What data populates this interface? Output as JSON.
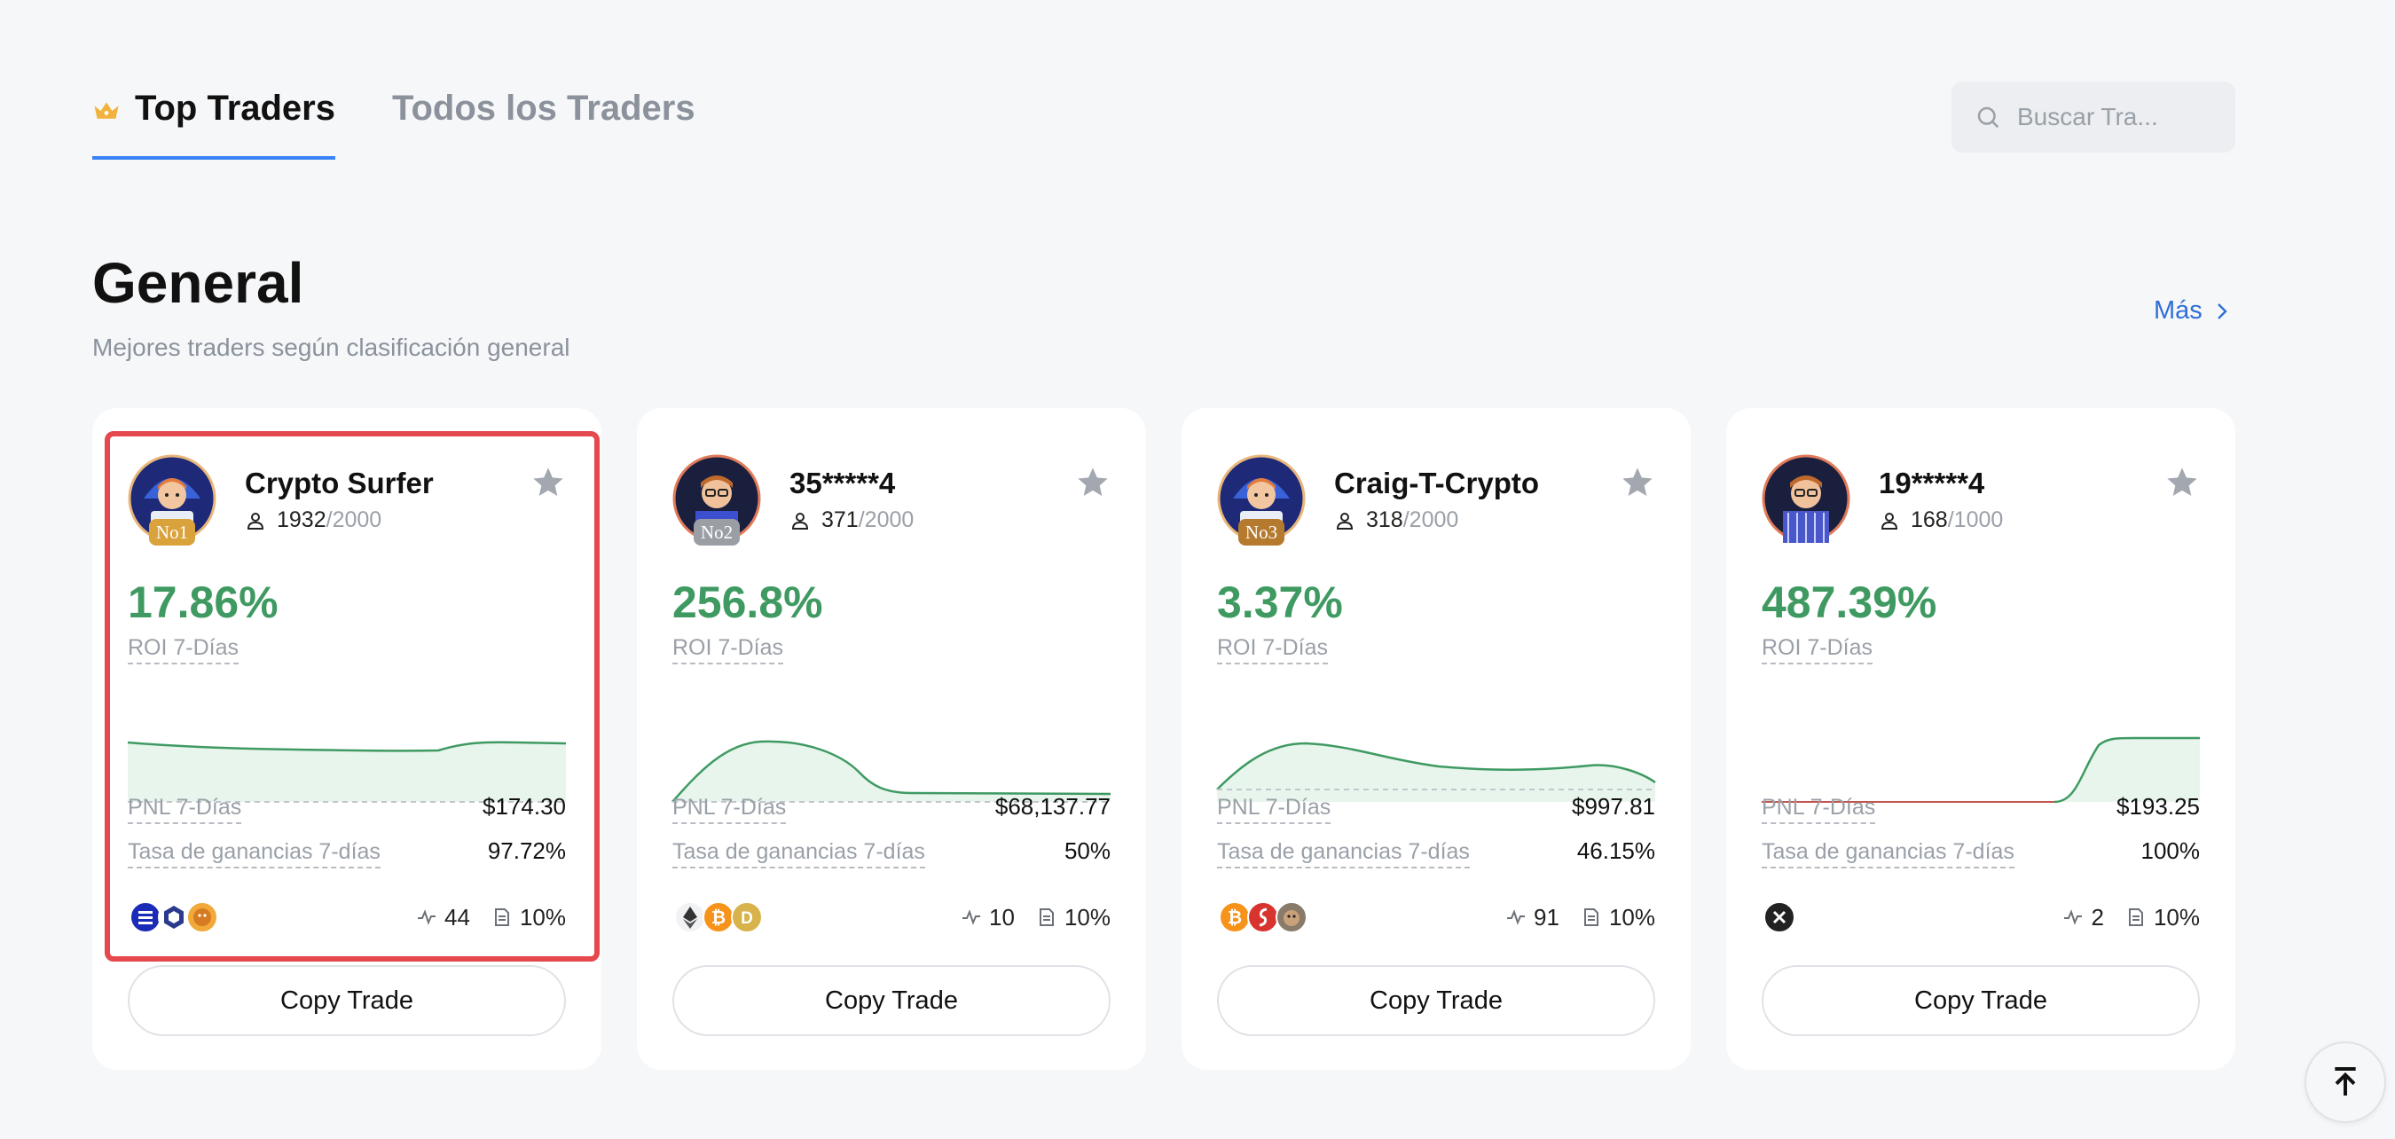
{
  "tabs": {
    "top": {
      "label": "Top Traders",
      "icon": "crown-icon",
      "active": true
    },
    "all": {
      "label": "Todos los Traders",
      "active": false
    }
  },
  "search": {
    "placeholder": "Buscar Tra...",
    "icon": "search-icon"
  },
  "section": {
    "title": "General",
    "subtitle": "Mejores traders según clasificación general",
    "more_label": "Más"
  },
  "colors": {
    "accent": "#3b82f6",
    "positive": "#3f9a62",
    "link": "#2f6fd6",
    "highlight": "#e5484d"
  },
  "traders": [
    {
      "name": "Crypto Surfer",
      "rank": "No1",
      "rank_color": "#d9a23a",
      "followers": "1932",
      "capacity": "/2000",
      "roi": "17.86%",
      "roi_label": "ROI 7-Días",
      "pnl_label": "PNL 7-Días",
      "pnl": "$174.30",
      "winrate_label": "Tasa de ganancias 7-días",
      "winrate": "97.72%",
      "coins": [
        "solana-icon",
        "chainlink-icon",
        "memecoin-icon"
      ],
      "trades": "44",
      "share": "10%",
      "copy_label": "Copy Trade",
      "highlighted": true
    },
    {
      "name": "35*****4",
      "rank": "No2",
      "rank_color": "#9a9ea5",
      "followers": "371",
      "capacity": "/2000",
      "roi": "256.8%",
      "roi_label": "ROI 7-Días",
      "pnl_label": "PNL 7-Días",
      "pnl": "$68,137.77",
      "winrate_label": "Tasa de ganancias 7-días",
      "winrate": "50%",
      "coins": [
        "ethereum-icon",
        "bitcoin-icon",
        "dogecoin-icon"
      ],
      "trades": "10",
      "share": "10%",
      "copy_label": "Copy Trade",
      "highlighted": false
    },
    {
      "name": "Craig-T-Crypto",
      "rank": "No3",
      "rank_color": "#b57a2e",
      "followers": "318",
      "capacity": "/2000",
      "roi": "3.37%",
      "roi_label": "ROI 7-Días",
      "pnl_label": "PNL 7-Días",
      "pnl": "$997.81",
      "winrate_label": "Tasa de ganancias 7-días",
      "winrate": "46.15%",
      "coins": [
        "bitcoin-icon",
        "sui-icon",
        "memecoin-icon"
      ],
      "trades": "91",
      "share": "10%",
      "copy_label": "Copy Trade",
      "highlighted": false
    },
    {
      "name": "19*****4",
      "rank": "",
      "rank_color": "",
      "followers": "168",
      "capacity": "/1000",
      "roi": "487.39%",
      "roi_label": "ROI 7-Días",
      "pnl_label": "PNL 7-Días",
      "pnl": "$193.25",
      "winrate_label": "Tasa de ganancias 7-días",
      "winrate": "100%",
      "coins": [
        "xrp-icon"
      ],
      "trades": "2",
      "share": "10%",
      "copy_label": "Copy Trade",
      "highlighted": false
    }
  ]
}
